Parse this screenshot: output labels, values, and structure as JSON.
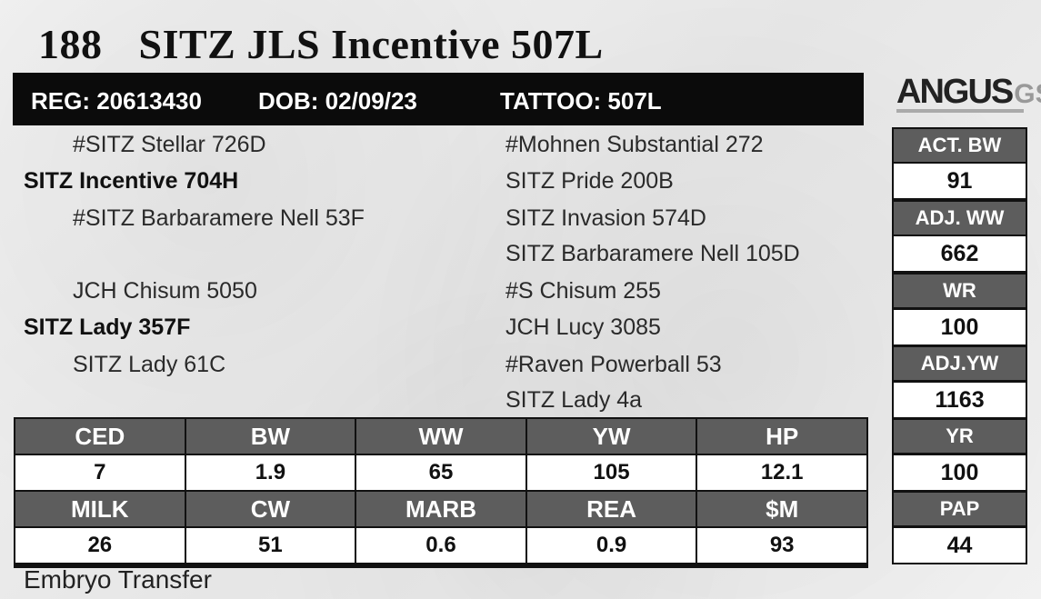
{
  "lot": "188",
  "name": "SITZ JLS Incentive 507L",
  "ids": {
    "reg": "REG: 20613430",
    "dob": "DOB: 02/09/23",
    "tattoo": "TATTOO: 507L"
  },
  "logo": {
    "main": "ANGUS",
    "suffix": "GS"
  },
  "pedigree": {
    "sire_sire": "#SITZ Stellar 726D",
    "sire": "SITZ Incentive 704H",
    "sire_dam": "#SITZ Barbaramere Nell 53F",
    "dam_sire": "JCH Chisum 5050",
    "dam": "SITZ Lady 357F",
    "dam_dam": "SITZ Lady 61C",
    "third_gen": [
      "#Mohnen Substantial 272",
      "SITZ Pride 200B",
      "SITZ Invasion 574D",
      "SITZ Barbaramere Nell 105D",
      "#S Chisum 255",
      "JCH Lucy 3085",
      "#Raven Powerball 53",
      "SITZ Lady 4a"
    ]
  },
  "performance": [
    {
      "label": "ACT. BW",
      "value": "91"
    },
    {
      "label": "ADJ. WW",
      "value": "662"
    },
    {
      "label": "WR",
      "value": "100"
    },
    {
      "label": "ADJ.YW",
      "value": "1163"
    },
    {
      "label": "YR",
      "value": "100"
    },
    {
      "label": "PAP",
      "value": "44"
    }
  ],
  "epd": {
    "row1": {
      "headers": [
        "CED",
        "BW",
        "WW",
        "YW",
        "HP"
      ],
      "values": [
        "7",
        "1.9",
        "65",
        "105",
        "12.1"
      ]
    },
    "row2": {
      "headers": [
        "MILK",
        "CW",
        "MARB",
        "REA",
        "$M"
      ],
      "values": [
        "26",
        "51",
        "0.6",
        "0.9",
        "93"
      ]
    }
  },
  "footer": "Embryo Transfer"
}
